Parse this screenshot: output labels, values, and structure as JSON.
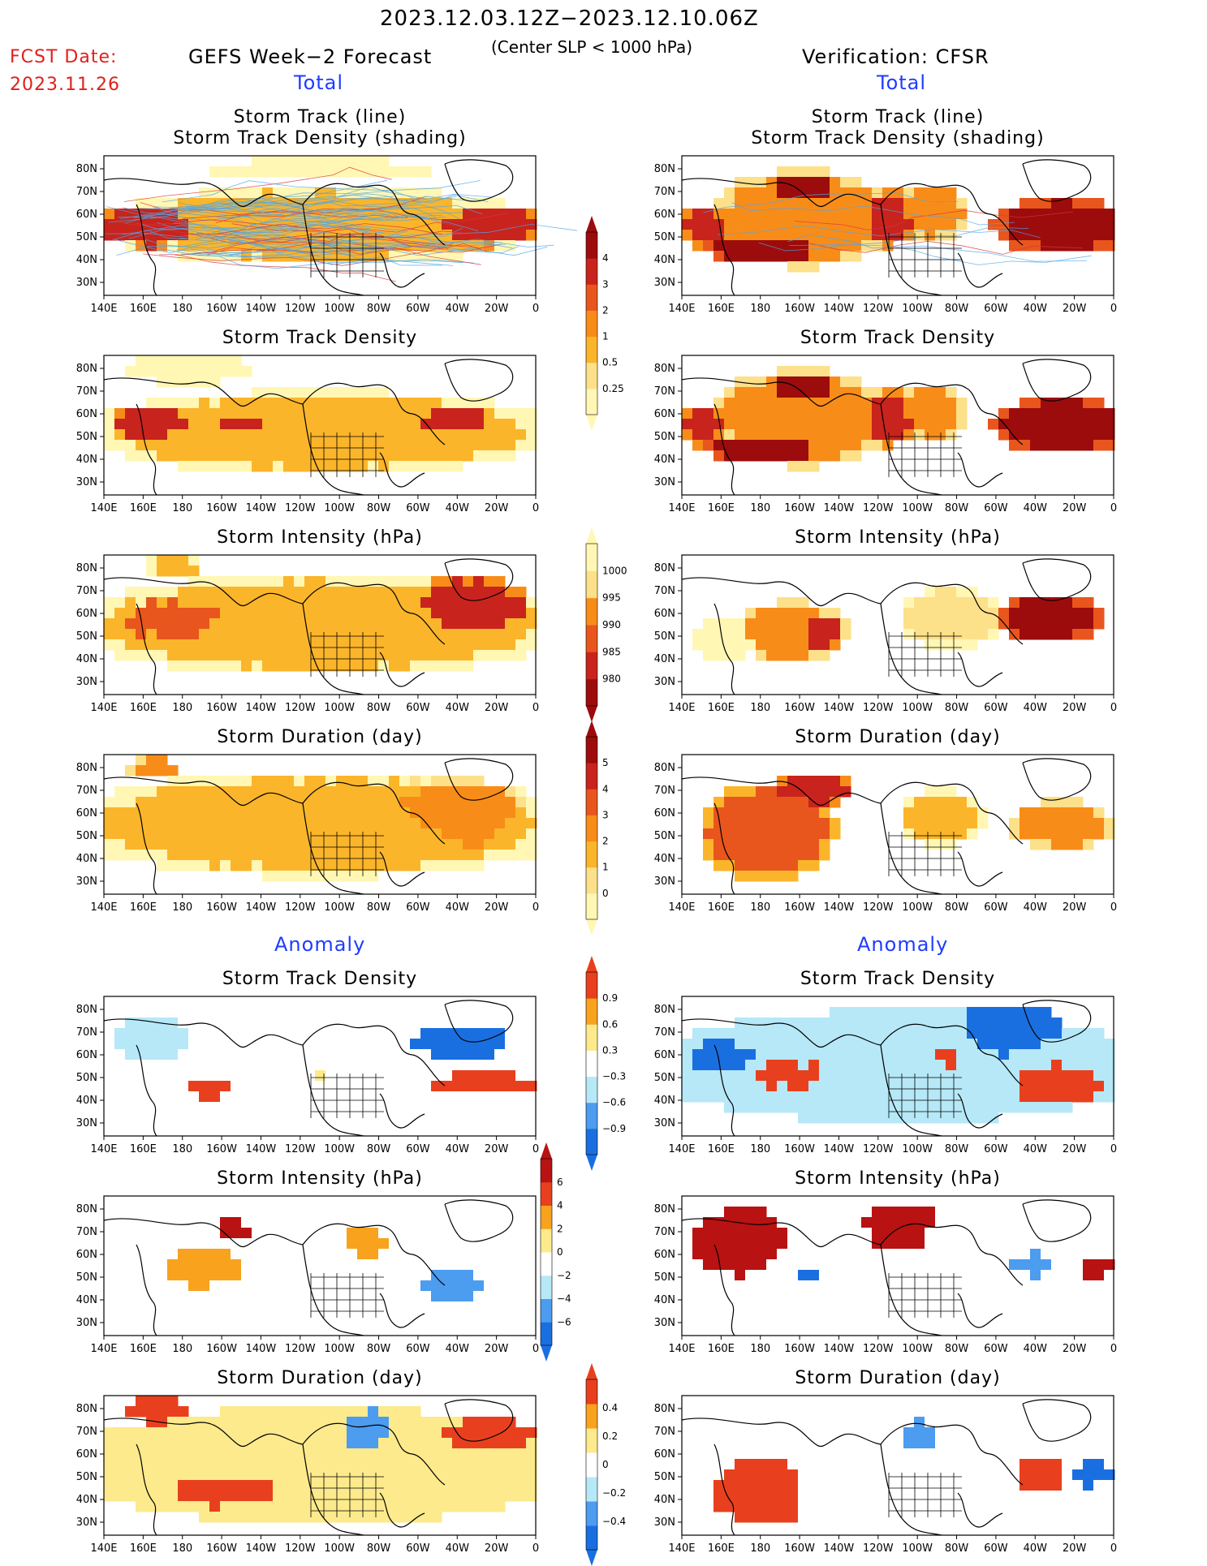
{
  "header": {
    "date_range": "2023.12.03.12Z−2023.12.10.06Z",
    "condition": "(Center SLP < 1000 hPa)",
    "fcst_label": "FCST Date:",
    "fcst_date": "2023.11.26",
    "left_title": "GEFS Week−2 Forecast",
    "right_title": "Verification: CFSR"
  },
  "sections": {
    "total": "Total",
    "anomaly": "Anomaly"
  },
  "panel_titles": {
    "track1": "Storm Track (line)",
    "track2": "Storm Track Density (shading)",
    "density": "Storm Track Density",
    "intensity": "Storm Intensity (hPa)",
    "duration": "Storm Duration (day)"
  },
  "axes": {
    "lon_labels": [
      "140E",
      "160E",
      "180",
      "160W",
      "140W",
      "120W",
      "100W",
      "80W",
      "60W",
      "40W",
      "20W",
      "0"
    ],
    "lat_labels": [
      "80N",
      "70N",
      "60N",
      "50N",
      "40N",
      "30N"
    ]
  },
  "colorbars": {
    "density_total": [
      "4",
      "3",
      "2",
      "1",
      "0.5",
      "0.25"
    ],
    "intensity_total": [
      "1000",
      "995",
      "990",
      "985",
      "980"
    ],
    "duration_total": [
      "5",
      "4",
      "3",
      "2",
      "1",
      "0"
    ],
    "density_anom": [
      "0.9",
      "0.6",
      "0.3",
      "−0.3",
      "−0.6",
      "−0.9"
    ],
    "intensity_anom": [
      "6",
      "4",
      "2",
      "0",
      "−2",
      "−4",
      "−6"
    ],
    "duration_anom": [
      "0.4",
      "0.2",
      "0",
      "−0.2",
      "−0.4"
    ]
  },
  "colors": {
    "fcst": "#e0201c",
    "section": "#1f3cff",
    "seq": [
      "#fff7b3",
      "#fde08a",
      "#fbb52a",
      "#f88c19",
      "#e8561d",
      "#c8231d",
      "#9c0c0c"
    ],
    "div": [
      "#1a6fe0",
      "#4c9cf0",
      "#b6e8f7",
      "#ffffff",
      "#fcea8c",
      "#f8a21e",
      "#e8401e",
      "#b81212"
    ]
  }
}
